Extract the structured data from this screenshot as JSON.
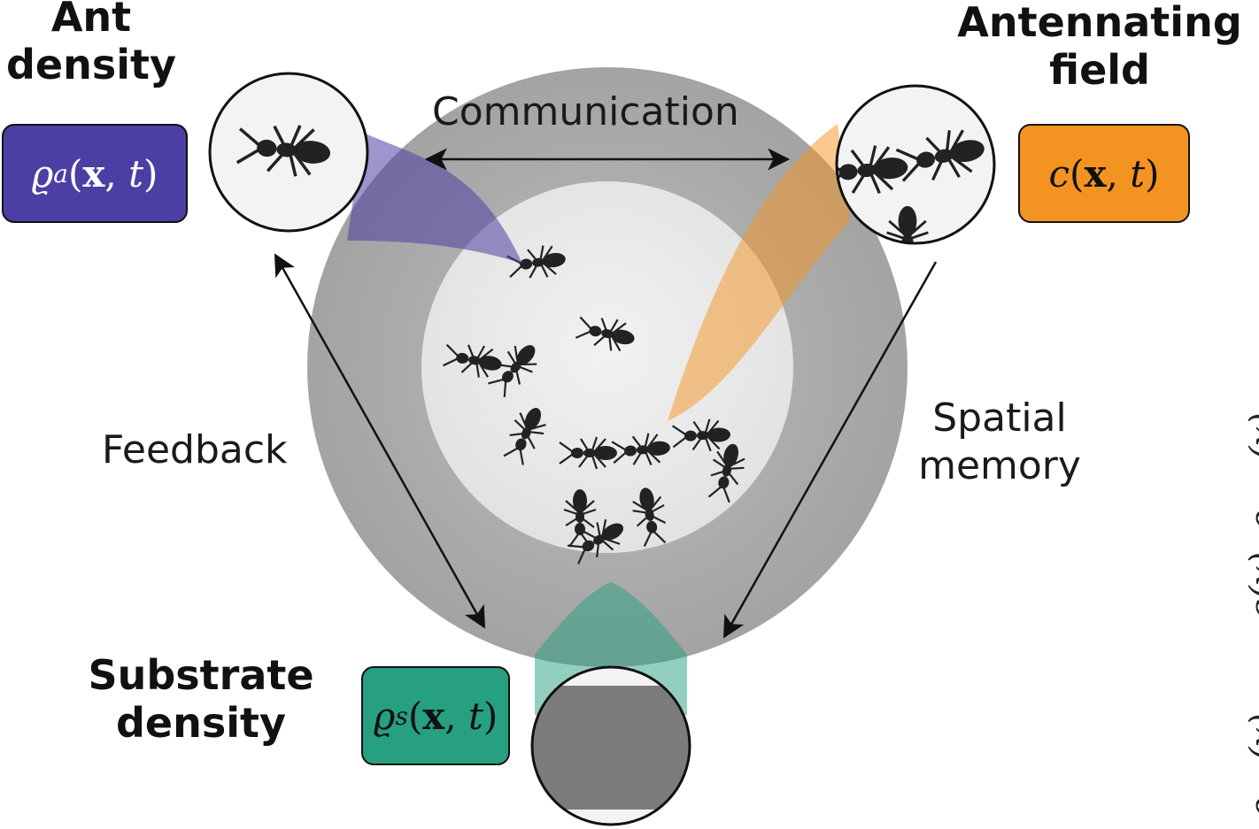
{
  "labels": {
    "ant_density": {
      "line1": "Ant",
      "line2": "density"
    },
    "antennating_field": {
      "line1": "Antennating",
      "line2": "field"
    },
    "substrate_density": {
      "line1": "Substrate",
      "line2": "density"
    },
    "communication": "Communication",
    "feedback": "Feedback",
    "spatial_memory": {
      "line1": "Spatial",
      "line2": "memory"
    }
  },
  "formulas": {
    "ant_density": {
      "symbol": "ϱ",
      "sub": "a",
      "open": "(",
      "vec": "x",
      "sep": ", ",
      "var": "t",
      "close": ")"
    },
    "antennating_field": {
      "symbol": "c",
      "sub": "",
      "open": "(",
      "vec": "x",
      "sep": ", ",
      "var": "t",
      "close": ")"
    },
    "substrate_density": {
      "symbol": "ϱ",
      "sub": "s",
      "open": "(",
      "vec": "x",
      "sep": ", ",
      "var": "t",
      "close": ")"
    }
  },
  "edge_text": {
    "e1": "ϱ",
    "e2": "(x)",
    "e3": "c(x)",
    "e4": "ϱ",
    "e5": "(x)"
  },
  "colors": {
    "ant_density": "#4b3fa3",
    "antennating_field": "#f39322",
    "substrate_density": "#26a080",
    "arena_outer": "#a8a8a8",
    "arena_inner": "#ededed"
  }
}
